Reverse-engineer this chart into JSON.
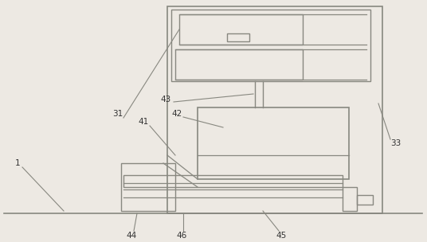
{
  "bg_color": "#ede9e3",
  "lc": "#888880",
  "lw": 1.0,
  "fig_width": 5.36,
  "fig_height": 3.04,
  "dpi": 100
}
